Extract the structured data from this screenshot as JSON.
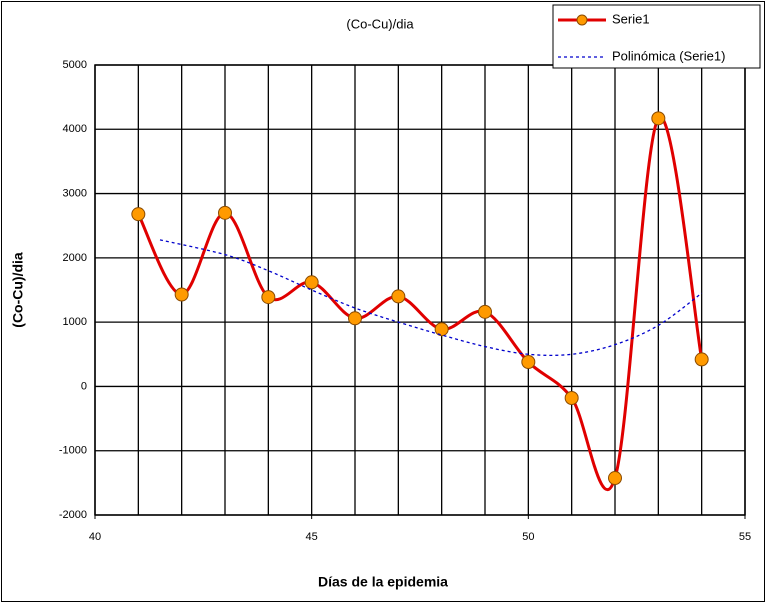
{
  "chart_data": {
    "type": "line",
    "title": "(Co-Cu)/dia",
    "x_label": "Días de la epidemia",
    "y_label": "(Co-Cu)/dia",
    "xlim": [
      40,
      55
    ],
    "xticks": [
      40,
      45,
      50,
      55
    ],
    "xgrid_step": 1,
    "ylim": [
      -2000,
      5000
    ],
    "yticks": [
      -2000,
      -1000,
      0,
      1000,
      2000,
      3000,
      4000,
      5000
    ],
    "grid": true,
    "legend": "top-right",
    "series": [
      {
        "name": "Serie1",
        "color": "#e00000",
        "marker_color": "#ff9a00",
        "smooth": true,
        "x": [
          41,
          42,
          43,
          44,
          45,
          46,
          47,
          48,
          49,
          50,
          51,
          52,
          53,
          54
        ],
        "values": [
          2680,
          1430,
          2700,
          1390,
          1620,
          1060,
          1400,
          890,
          1160,
          380,
          -180,
          -1425,
          4170,
          420
        ]
      },
      {
        "name": "Polinómica (Serie1)",
        "color": "#0000cc",
        "dashed": true,
        "smooth": true,
        "x": [
          41.5,
          43,
          44,
          45,
          46,
          47,
          48,
          49,
          50,
          51,
          52,
          53,
          54
        ],
        "values": [
          2280,
          2050,
          1800,
          1500,
          1220,
          1000,
          800,
          620,
          500,
          500,
          650,
          950,
          1450
        ]
      }
    ]
  }
}
